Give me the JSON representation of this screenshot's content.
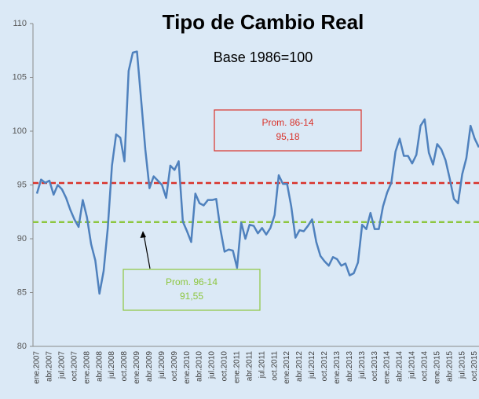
{
  "chart_data": {
    "type": "line",
    "title": "Tipo de Cambio Real",
    "subtitle": "Base 1986=100",
    "categories": [
      "ene.2007",
      null,
      null,
      "abr.2007",
      null,
      null,
      "jul.2007",
      null,
      null,
      "oct.2007",
      null,
      null,
      "ene.2008",
      null,
      null,
      "abr.2008",
      null,
      null,
      "jul.2008",
      null,
      null,
      "oct.2008",
      null,
      null,
      "ene.2009",
      null,
      null,
      "abr.2009",
      null,
      null,
      "jul.2009",
      null,
      null,
      "oct.2009",
      null,
      null,
      "ene.2010",
      null,
      null,
      "abr.2010",
      null,
      null,
      "jul.2010",
      null,
      null,
      "oct.2010",
      null,
      null,
      "ene.2011",
      null,
      null,
      "abr.2011",
      null,
      null,
      "jul.2011",
      null,
      null,
      "oct.2011",
      null,
      null,
      "ene.2012",
      null,
      null,
      "abr.2012",
      null,
      null,
      "jul.2012",
      null,
      null,
      "oct.2012",
      null,
      null,
      "ene.2013",
      null,
      null,
      "abr.2013",
      null,
      null,
      "jul.2013",
      null,
      null,
      "oct.2013",
      null,
      null,
      "ene.2014",
      null,
      null,
      "abr.2014",
      null,
      null,
      "jul.2014",
      null,
      null,
      "oct.2014",
      null,
      null,
      "ene.2015",
      null,
      null,
      "abr.2015",
      null,
      null,
      "jul.2015",
      null,
      null,
      "oct.2015",
      null
    ],
    "series": [
      {
        "color": "#4f81bd",
        "values": [
          94.2,
          95.5,
          95.2,
          95.4,
          94.1,
          95.0,
          94.6,
          93.8,
          92.7,
          91.8,
          91.1,
          93.6,
          92.0,
          89.5,
          88.0,
          84.9,
          87.0,
          91.0,
          96.8,
          99.7,
          99.4,
          97.2,
          105.6,
          107.3,
          107.4,
          102.9,
          98.3,
          94.7,
          95.8,
          95.4,
          95.0,
          93.8,
          96.8,
          96.4,
          97.2,
          91.6,
          90.7,
          89.7,
          94.2,
          93.3,
          93.1,
          93.6,
          93.6,
          93.7,
          90.9,
          88.8,
          89.0,
          88.9,
          87.3,
          91.5,
          90.0,
          91.3,
          91.2,
          90.5,
          91.0,
          90.4,
          91.0,
          92.2,
          95.9,
          95.1,
          95.1,
          93.0,
          90.1,
          90.8,
          90.7,
          91.2,
          91.8,
          89.7,
          88.4,
          87.9,
          87.5,
          88.3,
          88.1,
          87.5,
          87.7,
          86.6,
          86.8,
          87.8,
          91.3,
          90.9,
          92.4,
          90.9,
          90.9,
          93.0,
          94.3,
          95.2,
          98.1,
          99.3,
          97.7,
          97.7,
          97.0,
          97.8,
          100.5,
          101.1,
          98.0,
          96.9,
          98.8,
          98.3,
          97.3,
          95.6,
          93.7,
          93.3,
          96.0,
          97.5,
          100.5,
          99.3,
          98.5
        ]
      }
    ],
    "reference_lines": [
      {
        "name": "Prom. 86-14",
        "value": 95.18,
        "value_label": "95,18",
        "color": "#d9322a"
      },
      {
        "name": "Prom. 96-14",
        "value": 91.55,
        "value_label": "91,55",
        "color": "#8dc63f"
      }
    ],
    "ylim": [
      80,
      110
    ],
    "yticks": [
      80,
      85,
      90,
      95,
      100,
      105,
      110
    ],
    "grid": false
  }
}
